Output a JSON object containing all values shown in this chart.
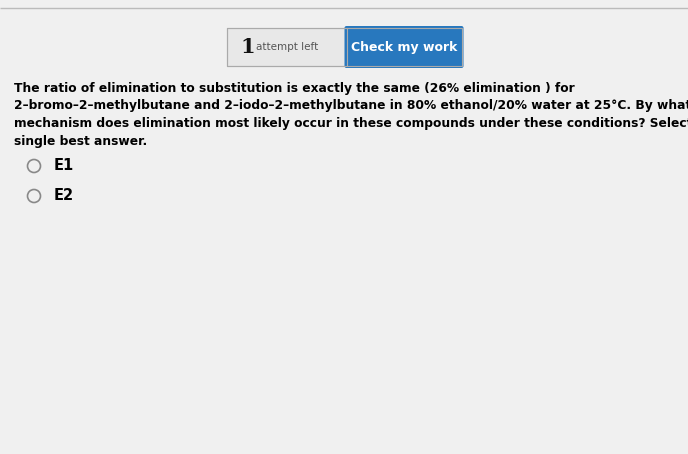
{
  "fig_width": 6.88,
  "fig_height": 4.54,
  "dpi": 100,
  "bg_color": "#f0f0f0",
  "content_bg": "#ffffff",
  "header_bg": "#e8e8e8",
  "button_color": "#2878be",
  "button_text": "Check my work",
  "button_text_color": "#ffffff",
  "attempt_number": "1",
  "attempt_label": "attempt left",
  "question_lines": [
    "The ratio of elimination to substitution is exactly the same (26% elimination ) for",
    "2–bromo–2–methylbutane and 2–iodo–2–methylbutane in 80% ethanol/20% water at 25°C. By what",
    "mechanism does elimination most likely occur in these compounds under these conditions? Select the",
    "single best answer."
  ],
  "option1": "E1",
  "option2": "E2",
  "top_border_color": "#bbbbbb",
  "box_border_color": "#aaaaaa",
  "divider_color": "#aaaaaa",
  "text_color": "#000000",
  "radio_color": "#888888",
  "attempt_text_color": "#555555"
}
